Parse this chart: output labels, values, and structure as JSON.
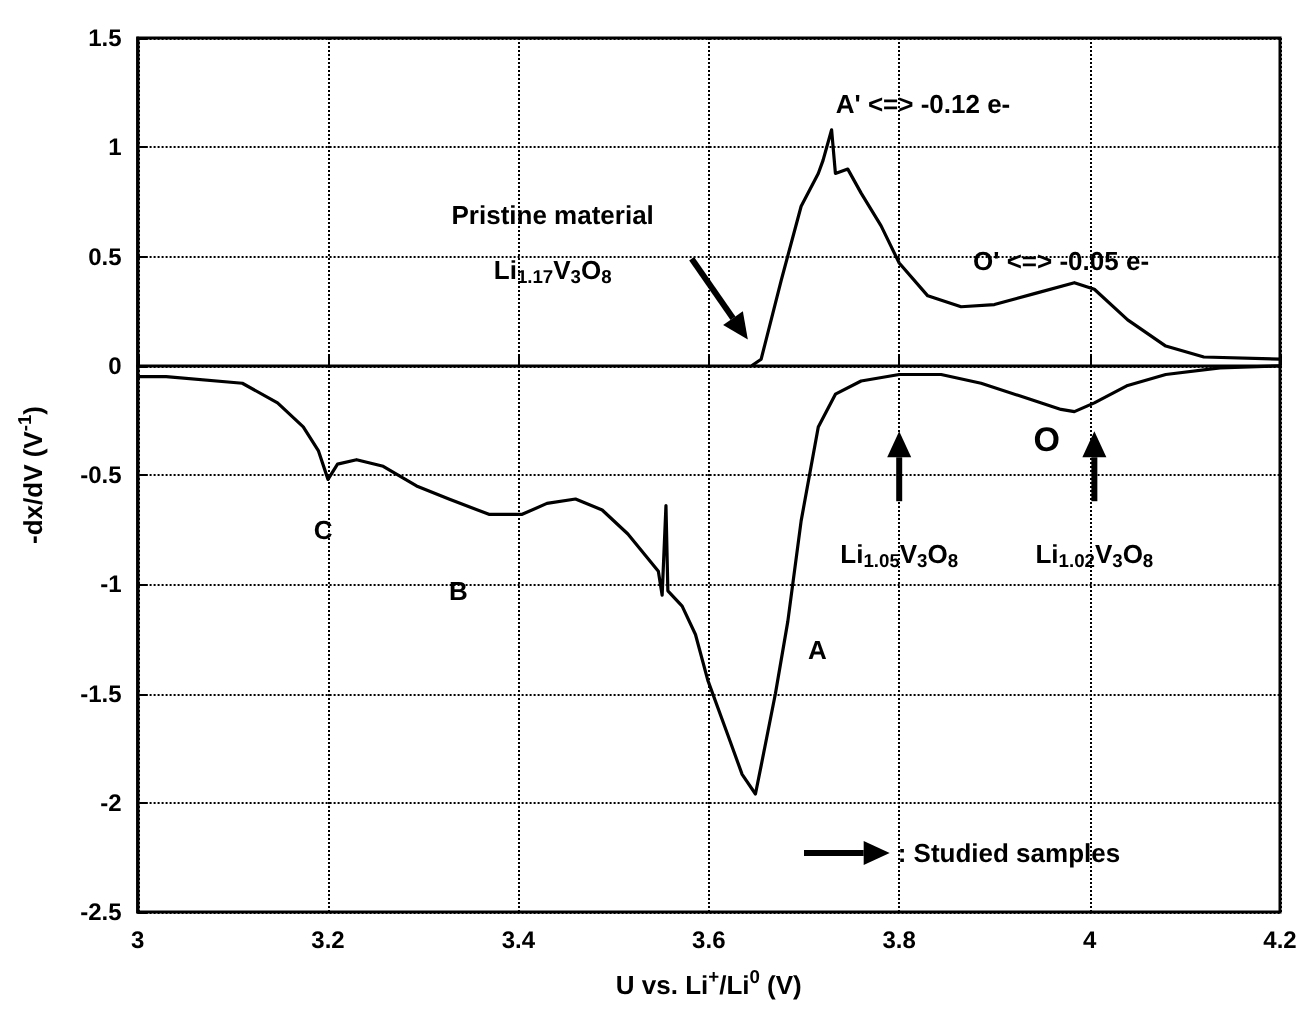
{
  "chart_data": {
    "type": "line",
    "xlabel": "U vs. Li$^{+}$/Li$^{0}$ (V)",
    "ylabel": "-dx/dV (V$^{-1}$)",
    "xlim": [
      3,
      4.2
    ],
    "xticks": [
      3,
      3.2,
      3.4,
      3.6,
      3.8,
      4,
      4.2
    ],
    "ylim": [
      -2.5,
      1.5
    ],
    "yticks": [
      -2.5,
      -2,
      -1.5,
      -1,
      -0.5,
      0,
      0.5,
      1,
      1.5
    ],
    "grid": true,
    "marker": "none",
    "line_style": "solid",
    "series": [
      {
        "color": "#000000",
        "x": [
          3.0,
          3.03,
          3.11,
          3.147,
          3.174,
          3.19,
          3.2,
          3.21,
          3.23,
          3.258,
          3.293,
          3.327,
          3.369,
          3.404,
          3.43,
          3.46,
          3.488,
          3.515,
          3.547,
          3.551,
          3.555,
          3.557,
          3.572,
          3.586,
          3.599,
          3.62,
          3.635,
          3.649,
          3.655,
          3.67,
          3.683,
          3.697,
          3.715,
          3.733,
          3.76,
          3.8,
          3.844,
          3.886,
          3.928,
          3.97,
          3.984,
          4.005,
          4.04,
          4.08,
          4.137,
          4.2
        ],
        "values": [
          -0.05,
          -0.05,
          -0.08,
          -0.17,
          -0.28,
          -0.39,
          -0.52,
          -0.45,
          -0.43,
          -0.46,
          -0.55,
          -0.61,
          -0.68,
          -0.68,
          -0.63,
          -0.61,
          -0.66,
          -0.77,
          -0.94,
          -1.05,
          -0.64,
          -1.03,
          -1.1,
          -1.23,
          -1.44,
          -1.69,
          -1.87,
          -1.96,
          -1.83,
          -1.5,
          -1.17,
          -0.71,
          -0.28,
          -0.13,
          -0.07,
          -0.04,
          -0.04,
          -0.08,
          -0.14,
          -0.2,
          -0.21,
          -0.17,
          -0.09,
          -0.04,
          -0.01,
          0.0
        ]
      },
      {
        "color": "#000000",
        "x": [
          3.645,
          3.655,
          3.676,
          3.697,
          3.715,
          3.72,
          3.729,
          3.733,
          3.746,
          3.76,
          3.781,
          3.8,
          3.83,
          3.865,
          3.9,
          3.942,
          3.984,
          4.005,
          4.04,
          4.08,
          4.12,
          4.2
        ],
        "values": [
          0.0,
          0.03,
          0.39,
          0.73,
          0.88,
          0.94,
          1.08,
          0.88,
          0.9,
          0.79,
          0.64,
          0.47,
          0.32,
          0.27,
          0.28,
          0.33,
          0.38,
          0.35,
          0.21,
          0.09,
          0.04,
          0.03
        ]
      }
    ],
    "annotations": [
      "A' <=> -0.12 e-",
      "O' <=> -0.05 e-",
      "Pristine material",
      "Li$_{1.17}$V$_{3}$O$_{8}$",
      "O",
      "Li$_{1.05}$V$_{3}$O$_{8}$",
      "Li$_{1.02}$V$_{3}$O$_{8}$",
      "C",
      "B",
      "A",
      ": Studied samples"
    ]
  }
}
